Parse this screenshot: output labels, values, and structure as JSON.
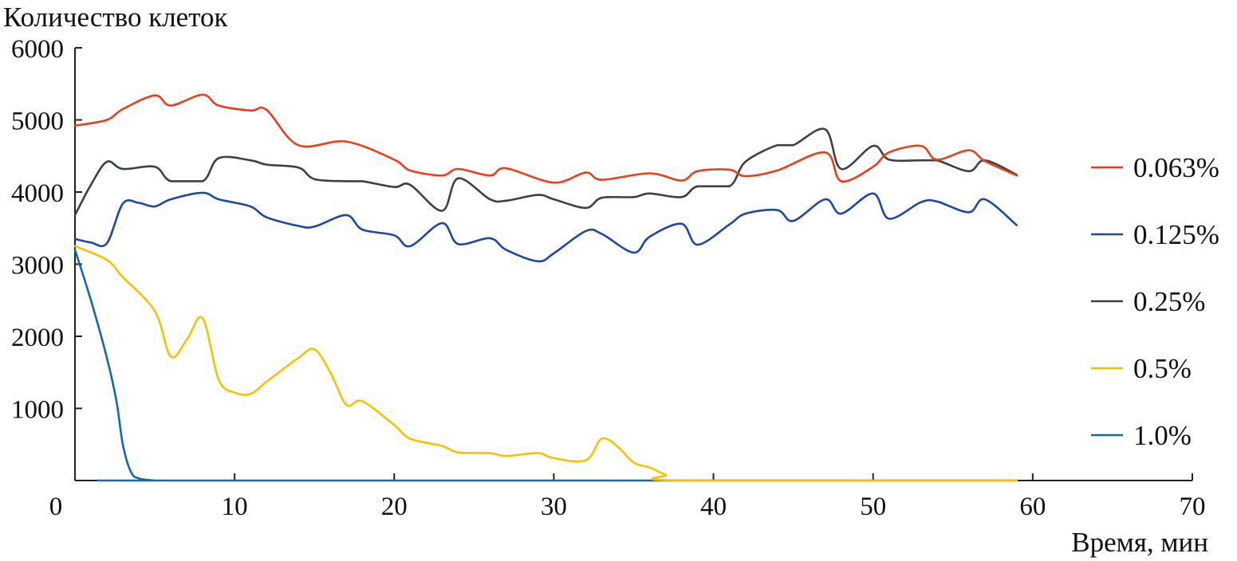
{
  "chart_data": {
    "type": "line",
    "ylabel": "Количество клеток",
    "xlabel": "Время, мин",
    "xlim": [
      0,
      70
    ],
    "ylim": [
      0,
      6000
    ],
    "x_ticks": [
      "0",
      "10",
      "20",
      "30",
      "40",
      "50",
      "60",
      "70"
    ],
    "y_ticks": [
      "1000",
      "2000",
      "3000",
      "4000",
      "5000",
      "6000"
    ],
    "grid": false,
    "legend_position": "right",
    "series": [
      {
        "name": "0.063%",
        "color": "#e8401c",
        "points": [
          [
            0,
            4920
          ],
          [
            2,
            5000
          ],
          [
            3,
            5150
          ],
          [
            5,
            5340
          ],
          [
            6,
            5200
          ],
          [
            8,
            5350
          ],
          [
            9,
            5200
          ],
          [
            11,
            5130
          ],
          [
            12,
            5140
          ],
          [
            14,
            4650
          ],
          [
            17,
            4700
          ],
          [
            20,
            4450
          ],
          [
            21,
            4300
          ],
          [
            23,
            4230
          ],
          [
            24,
            4320
          ],
          [
            26,
            4230
          ],
          [
            27,
            4330
          ],
          [
            30,
            4130
          ],
          [
            32,
            4270
          ],
          [
            33,
            4170
          ],
          [
            36,
            4260
          ],
          [
            38,
            4160
          ],
          [
            39,
            4290
          ],
          [
            41,
            4310
          ],
          [
            42,
            4220
          ],
          [
            44,
            4300
          ],
          [
            47,
            4550
          ],
          [
            48,
            4150
          ],
          [
            50,
            4350
          ],
          [
            51,
            4550
          ],
          [
            53,
            4640
          ],
          [
            54,
            4450
          ],
          [
            56,
            4580
          ],
          [
            57,
            4430
          ],
          [
            59,
            4230
          ]
        ]
      },
      {
        "name": "0.125%",
        "color": "#1f47a8",
        "points": [
          [
            0,
            3350
          ],
          [
            1,
            3300
          ],
          [
            2,
            3290
          ],
          [
            3,
            3840
          ],
          [
            4,
            3850
          ],
          [
            5,
            3800
          ],
          [
            6,
            3900
          ],
          [
            8,
            3990
          ],
          [
            9,
            3900
          ],
          [
            11,
            3800
          ],
          [
            12,
            3650
          ],
          [
            14,
            3530
          ],
          [
            15,
            3520
          ],
          [
            17,
            3680
          ],
          [
            18,
            3480
          ],
          [
            20,
            3400
          ],
          [
            21,
            3250
          ],
          [
            23,
            3570
          ],
          [
            24,
            3280
          ],
          [
            26,
            3360
          ],
          [
            27,
            3200
          ],
          [
            29,
            3040
          ],
          [
            30,
            3150
          ],
          [
            32,
            3460
          ],
          [
            33,
            3420
          ],
          [
            35,
            3160
          ],
          [
            36,
            3380
          ],
          [
            38,
            3560
          ],
          [
            39,
            3270
          ],
          [
            41,
            3550
          ],
          [
            42,
            3700
          ],
          [
            44,
            3750
          ],
          [
            45,
            3600
          ],
          [
            47,
            3900
          ],
          [
            48,
            3700
          ],
          [
            50,
            3980
          ],
          [
            51,
            3630
          ],
          [
            53,
            3860
          ],
          [
            54,
            3870
          ],
          [
            56,
            3720
          ],
          [
            57,
            3900
          ],
          [
            59,
            3540
          ]
        ]
      },
      {
        "name": "0.25%",
        "color": "#3c4240",
        "points": [
          [
            0,
            3680
          ],
          [
            1,
            4100
          ],
          [
            2,
            4420
          ],
          [
            3,
            4320
          ],
          [
            5,
            4350
          ],
          [
            6,
            4150
          ],
          [
            8,
            4150
          ],
          [
            9,
            4470
          ],
          [
            11,
            4440
          ],
          [
            12,
            4380
          ],
          [
            14,
            4340
          ],
          [
            15,
            4180
          ],
          [
            17,
            4150
          ],
          [
            18,
            4150
          ],
          [
            20,
            4070
          ],
          [
            21,
            4100
          ],
          [
            23,
            3740
          ],
          [
            24,
            4190
          ],
          [
            26,
            3900
          ],
          [
            27,
            3880
          ],
          [
            29,
            3960
          ],
          [
            30,
            3900
          ],
          [
            32,
            3780
          ],
          [
            33,
            3920
          ],
          [
            35,
            3930
          ],
          [
            36,
            3980
          ],
          [
            38,
            3930
          ],
          [
            39,
            4080
          ],
          [
            41,
            4080
          ],
          [
            42,
            4420
          ],
          [
            44,
            4650
          ],
          [
            45,
            4650
          ],
          [
            47,
            4870
          ],
          [
            48,
            4320
          ],
          [
            50,
            4640
          ],
          [
            51,
            4450
          ],
          [
            53,
            4440
          ],
          [
            54,
            4440
          ],
          [
            56,
            4290
          ],
          [
            57,
            4440
          ],
          [
            59,
            4240
          ]
        ]
      },
      {
        "name": "0.5%",
        "color": "#f5c400",
        "points": [
          [
            0,
            3250
          ],
          [
            2,
            3060
          ],
          [
            3,
            2820
          ],
          [
            5,
            2350
          ],
          [
            6,
            1720
          ],
          [
            7,
            1950
          ],
          [
            8,
            2250
          ],
          [
            9,
            1400
          ],
          [
            10,
            1220
          ],
          [
            11,
            1200
          ],
          [
            12,
            1370
          ],
          [
            14,
            1700
          ],
          [
            15,
            1820
          ],
          [
            16,
            1500
          ],
          [
            17,
            1050
          ],
          [
            18,
            1100
          ],
          [
            20,
            770
          ],
          [
            21,
            580
          ],
          [
            23,
            480
          ],
          [
            24,
            390
          ],
          [
            26,
            380
          ],
          [
            27,
            340
          ],
          [
            29,
            380
          ],
          [
            30,
            310
          ],
          [
            32,
            280
          ],
          [
            33,
            580
          ],
          [
            34,
            470
          ],
          [
            35,
            250
          ],
          [
            36,
            180
          ],
          [
            37,
            80
          ],
          [
            38,
            0
          ],
          [
            59,
            0
          ]
        ]
      },
      {
        "name": "1.0%",
        "color": "#1467b0",
        "points": [
          [
            0,
            3200
          ],
          [
            1,
            2500
          ],
          [
            2,
            1700
          ],
          [
            2.6,
            1100
          ],
          [
            3,
            500
          ],
          [
            3.5,
            120
          ],
          [
            4,
            30
          ],
          [
            5,
            0
          ],
          [
            5.5,
            0
          ],
          [
            59,
            0
          ]
        ]
      }
    ]
  }
}
